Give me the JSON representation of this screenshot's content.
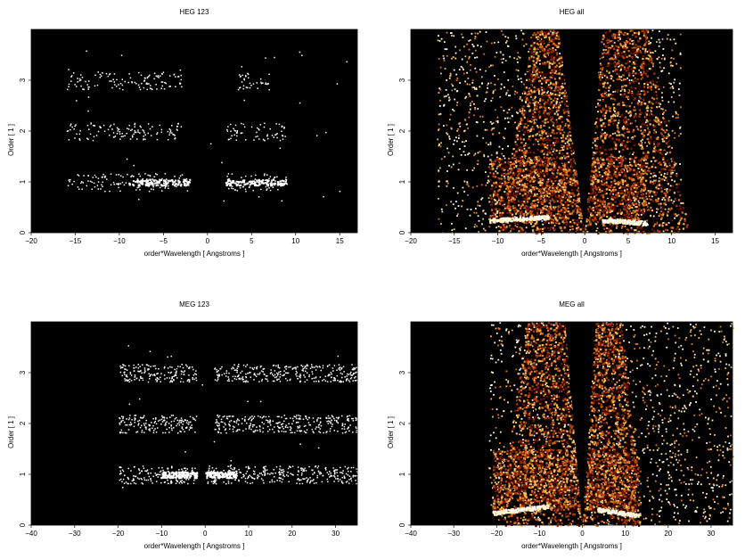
{
  "colors": {
    "background": "#000000",
    "colormap": [
      "#3a0000",
      "#7a1500",
      "#b33a00",
      "#e07820",
      "#f5c060",
      "#fff2c0",
      "#ffffff"
    ]
  },
  "chart_data": [
    {
      "type": "heatmap",
      "title": "HEG 123",
      "xlabel": "order*Wavelength [ Angstroms ]",
      "ylabel": "Order [ 1 ]",
      "xlim": [
        -20,
        17
      ],
      "ylim": [
        0,
        4
      ],
      "xticks": [
        -20,
        -15,
        -10,
        -5,
        0,
        5,
        10,
        15
      ],
      "yticks": [
        0,
        1,
        2,
        3
      ],
      "bands": [
        {
          "order": 1,
          "segments": [
            [
              -16,
              -2
            ],
            [
              2,
              9
            ]
          ],
          "bright": [
            [
              -9,
              -2
            ],
            [
              2,
              9
            ]
          ]
        },
        {
          "order": 2,
          "segments": [
            [
              -16,
              -3
            ],
            [
              2,
              9
            ]
          ],
          "bright": []
        },
        {
          "order": 3,
          "segments": [
            [
              -16,
              -3
            ],
            [
              3,
              7
            ]
          ],
          "bright": []
        }
      ]
    },
    {
      "type": "heatmap",
      "title": "HEG all",
      "xlabel": "order*Wavelength [ Angstroms ]",
      "ylabel": "Order [ 1 ]",
      "xlim": [
        -20,
        17
      ],
      "ylim": [
        0,
        4
      ],
      "xticks": [
        -20,
        -15,
        -10,
        -5,
        0,
        5,
        10,
        15
      ],
      "yticks": [
        0,
        1,
        2,
        3
      ],
      "scatter_extent": [
        -17,
        11
      ],
      "wedge_outer": [
        [
          -10,
          0
        ],
        [
          -6,
          4
        ],
        [
          12,
          0
        ],
        [
          7,
          4
        ]
      ],
      "wedge_inner": [
        [
          0,
          0
        ],
        [
          -3,
          4
        ],
        [
          0,
          0
        ],
        [
          2,
          4
        ]
      ],
      "dense_box": {
        "x": [
          -11,
          7
        ],
        "y": [
          0.2,
          1.5
        ]
      }
    },
    {
      "type": "heatmap",
      "title": "MEG 123",
      "xlabel": "order*Wavelength [ Angstroms ]",
      "ylabel": "Order [ 1 ]",
      "xlim": [
        -40,
        35
      ],
      "ylim": [
        0,
        4
      ],
      "xticks": [
        -40,
        -30,
        -20,
        -10,
        0,
        10,
        20,
        30
      ],
      "yticks": [
        0,
        1,
        2,
        3
      ],
      "bands": [
        {
          "order": 1,
          "segments": [
            [
              -20,
              -2
            ],
            [
              0,
              35
            ]
          ],
          "bright": [
            [
              -10,
              -2
            ],
            [
              0,
              7
            ]
          ]
        },
        {
          "order": 2,
          "segments": [
            [
              -20,
              -2
            ],
            [
              2,
              35
            ]
          ],
          "bright": []
        },
        {
          "order": 3,
          "segments": [
            [
              -20,
              -2
            ],
            [
              2,
              35
            ]
          ],
          "bright": []
        }
      ]
    },
    {
      "type": "heatmap",
      "title": "MEG all",
      "xlabel": "order*Wavelength [ Angstroms ]",
      "ylabel": "Order [ 1 ]",
      "xlim": [
        -40,
        35
      ],
      "ylim": [
        0,
        4
      ],
      "xticks": [
        -40,
        -30,
        -20,
        -10,
        0,
        10,
        20,
        30
      ],
      "yticks": [
        0,
        1,
        2,
        3
      ],
      "scatter_extent": [
        -22,
        35
      ],
      "wedge_outer": [
        [
          -20,
          0
        ],
        [
          -13,
          4
        ],
        [
          14,
          0
        ],
        [
          9,
          4
        ]
      ],
      "wedge_inner": [
        [
          0,
          0
        ],
        [
          -4,
          4
        ],
        [
          0,
          0
        ],
        [
          3,
          4
        ]
      ],
      "dense_box": {
        "x": [
          -21,
          13
        ],
        "y": [
          0.3,
          1.5
        ]
      }
    }
  ]
}
